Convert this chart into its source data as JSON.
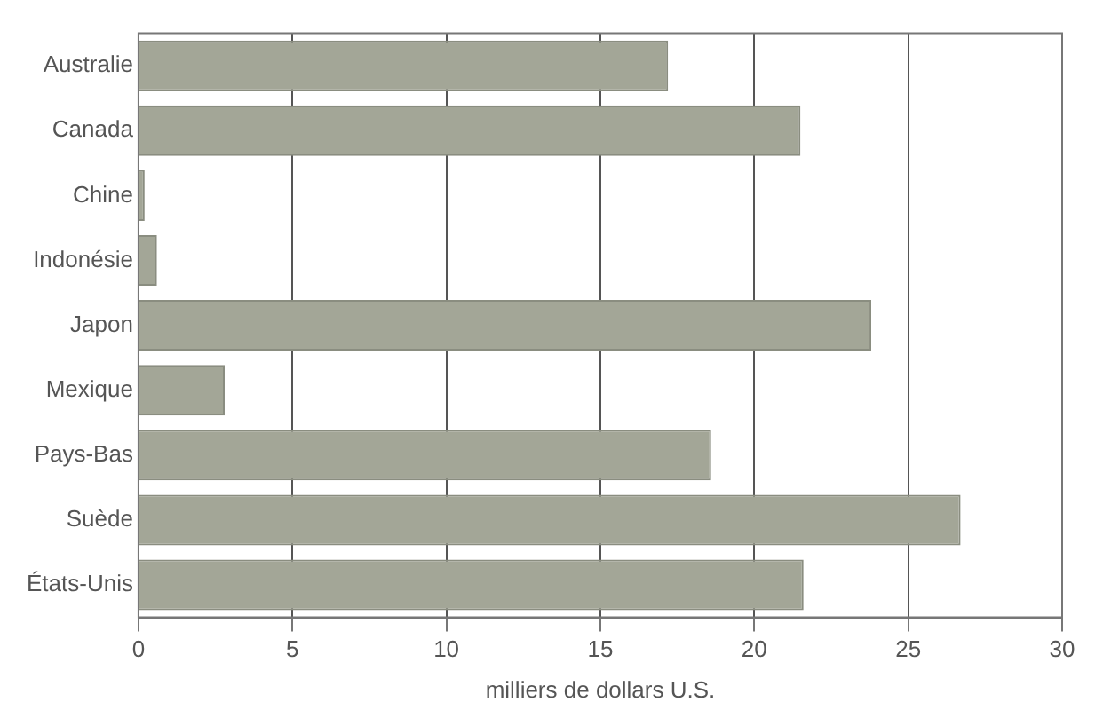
{
  "chart_data": {
    "type": "bar",
    "orientation": "horizontal",
    "xlabel": "milliers de dollars U.S.",
    "categories": [
      "Australie",
      "Canada",
      "Chine",
      "Indonésie",
      "Japon",
      "Mexique",
      "Pays-Bas",
      "Suède",
      "États-Unis"
    ],
    "values": [
      17.2,
      21.5,
      0.2,
      0.6,
      23.8,
      2.8,
      18.6,
      26.7,
      21.6
    ],
    "color": "#a3a697",
    "xlim": [
      0,
      30
    ],
    "xticks": [
      0,
      5,
      10,
      15,
      20,
      25,
      30
    ],
    "grid": "x",
    "legend": false
  }
}
